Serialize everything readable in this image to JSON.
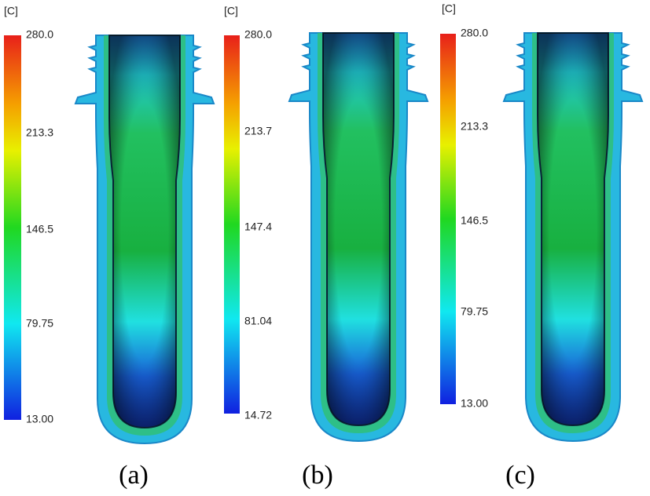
{
  "panels": [
    {
      "unit": "[C]",
      "scale_labels": [
        "280.0",
        "213.3",
        "146.5",
        "79.75",
        "13.00"
      ],
      "caption": "(a)"
    },
    {
      "unit": "[C]",
      "scale_labels": [
        "280.0",
        "213.7",
        "147.4",
        "81.04",
        "14.72"
      ],
      "caption": "(b)"
    },
    {
      "unit": "[C]",
      "scale_labels": [
        "280.0",
        "213.3",
        "146.5",
        "79.75",
        "13.00"
      ],
      "caption": "(c)"
    }
  ]
}
